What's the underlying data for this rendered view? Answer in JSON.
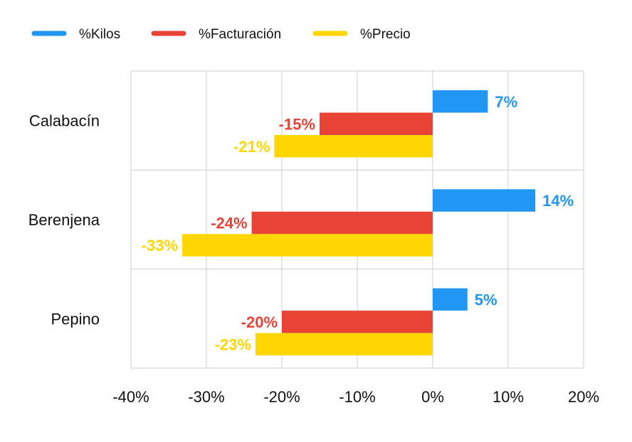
{
  "chart_data": {
    "type": "bar",
    "orientation": "horizontal",
    "categories": [
      "Calabacín",
      "Berenjena",
      "Pepino"
    ],
    "series": [
      {
        "name": "%Kilos",
        "color": "#2196F3",
        "values": [
          7.3,
          13.6,
          4.6
        ],
        "labels": [
          "7%",
          "14%",
          "5%"
        ]
      },
      {
        "name": "%Facturación",
        "color": "#E84335",
        "values": [
          -15.0,
          -24.0,
          -20.0
        ],
        "labels": [
          "-15%",
          "-24%",
          "-20%"
        ]
      },
      {
        "name": "%Precio",
        "color": "#FFD600",
        "values": [
          -21.0,
          -33.2,
          -23.5
        ],
        "labels": [
          "-21%",
          "-33%",
          "-23%"
        ]
      }
    ],
    "xlim": [
      -40,
      20
    ],
    "xticks": [
      -40,
      -30,
      -20,
      -10,
      0,
      10,
      20
    ],
    "xtick_labels": [
      "-40%",
      "-30%",
      "-20%",
      "-10%",
      "0%",
      "10%",
      "20%"
    ],
    "grid": true,
    "legend_position": "top-left",
    "title": "",
    "xlabel": "",
    "ylabel": ""
  }
}
